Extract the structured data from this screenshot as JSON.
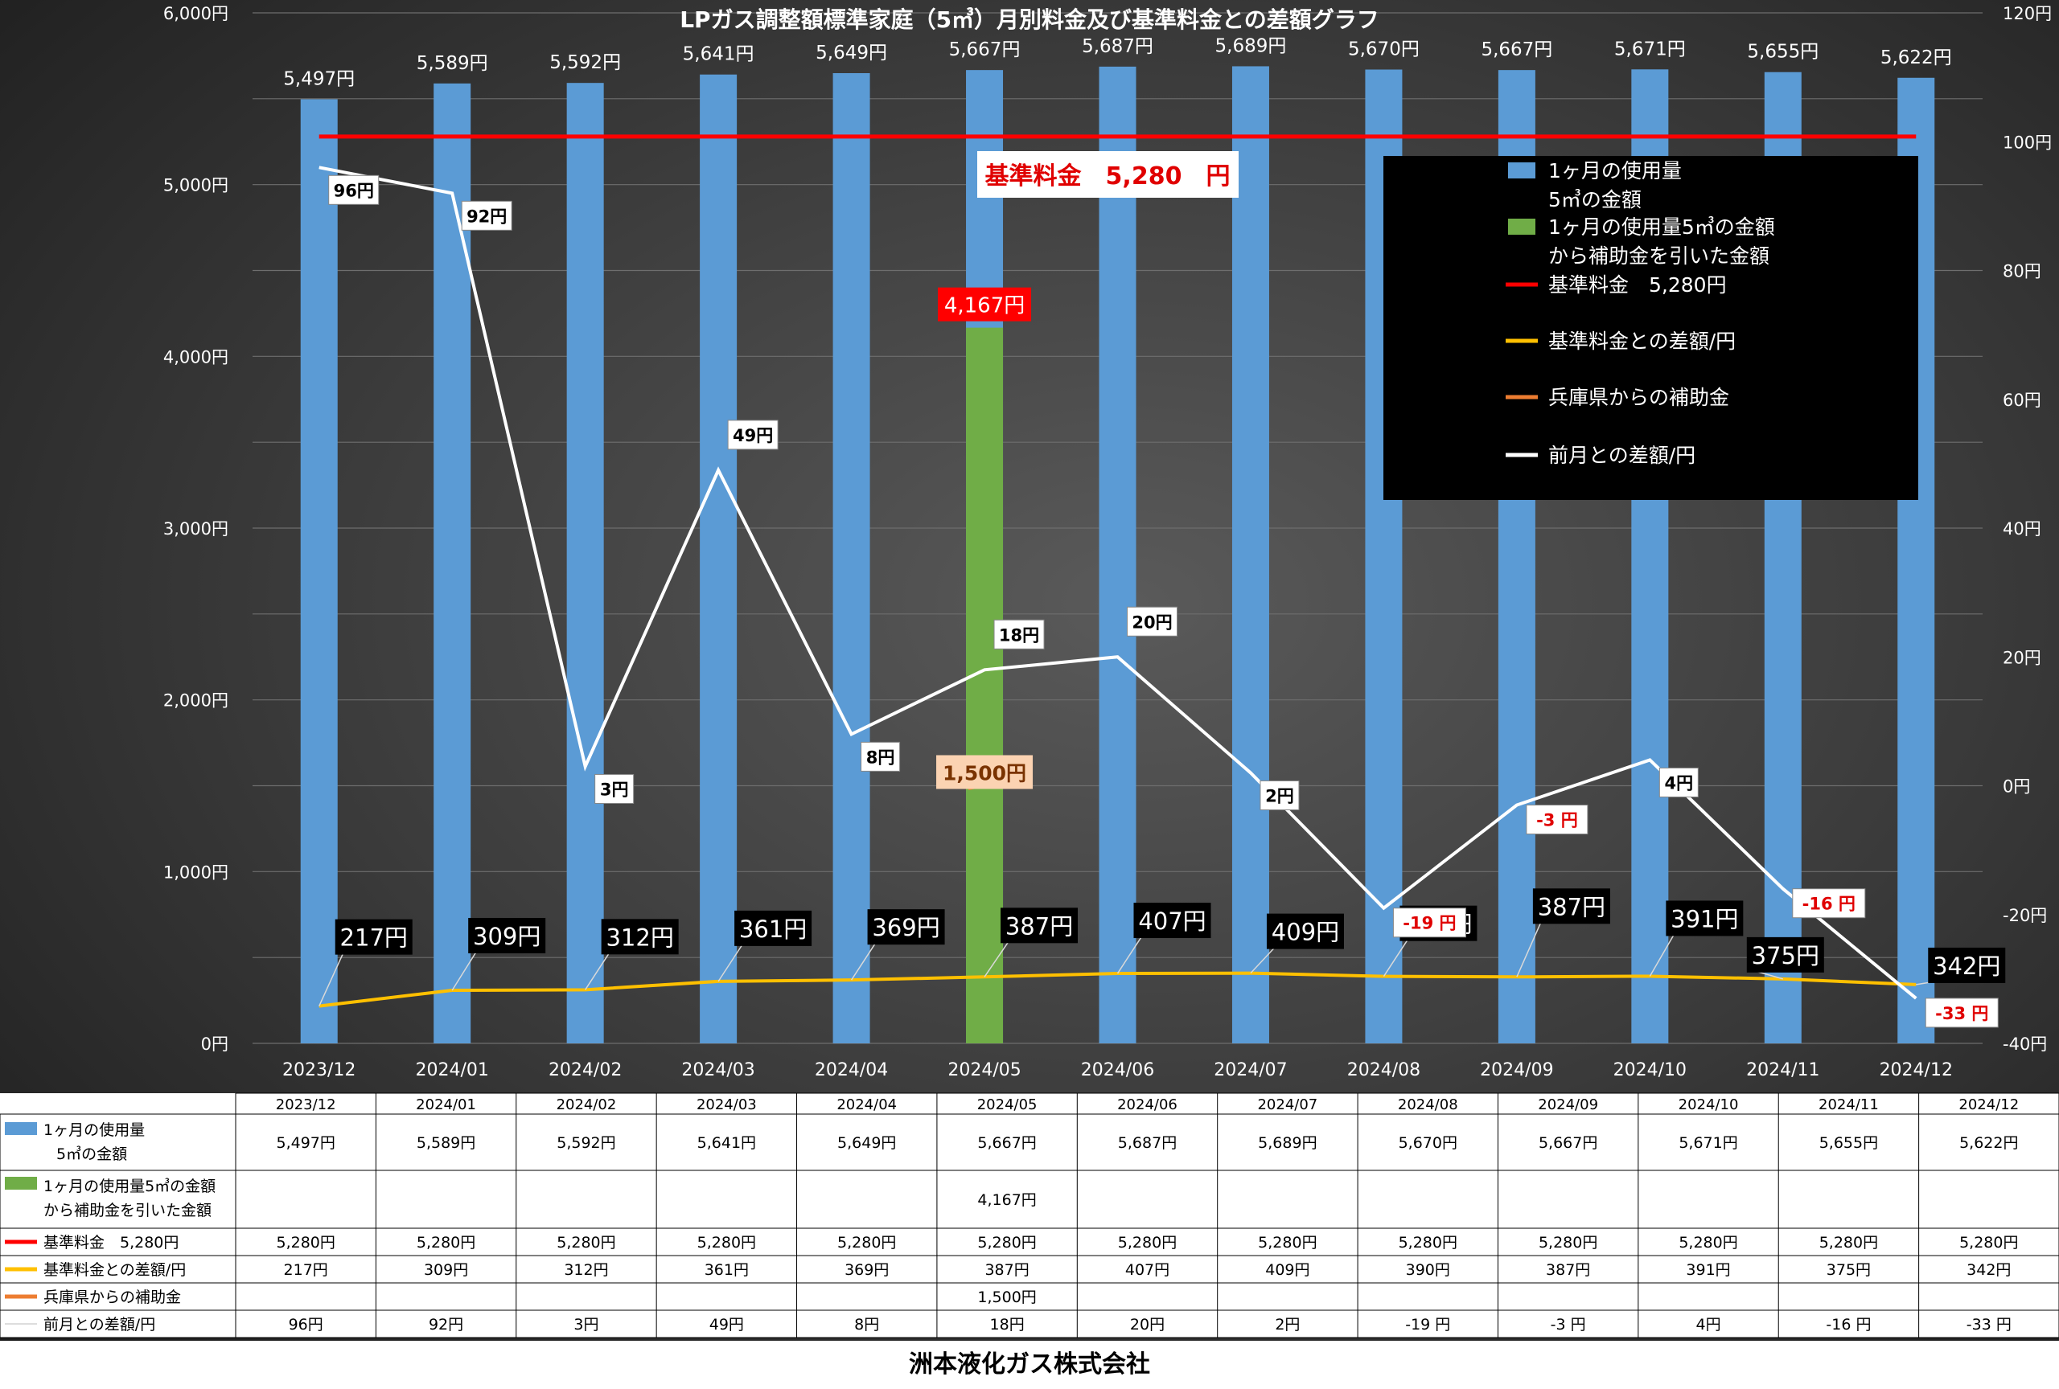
{
  "chart_data": {
    "type": "bar",
    "title": "LPガス調整額標準家庭（5㎥）月別料金及び基準料金との差額グラフ",
    "categories": [
      "2023/12",
      "2024/01",
      "2024/02",
      "2024/03",
      "2024/04",
      "2024/05",
      "2024/06",
      "2024/07",
      "2024/08",
      "2024/09",
      "2024/10",
      "2024/11",
      "2024/12"
    ],
    "y_left": {
      "range": [
        0,
        6000
      ],
      "ticks": [
        "0円",
        "1,000円",
        "2,000円",
        "3,000円",
        "4,000円",
        "5,000円",
        "6,000円"
      ]
    },
    "y_right": {
      "range": [
        -40,
        120
      ],
      "ticks": [
        "-40円",
        "-20円",
        "0円",
        "20円",
        "40円",
        "60円",
        "80円",
        "100円",
        "120円"
      ]
    },
    "grid": true,
    "legend_position": "top-right",
    "series": [
      {
        "name": "1ヶ月の使用量\n5㎥の金額",
        "type": "bar",
        "color": "#5b9bd5",
        "values": [
          5497,
          5589,
          5592,
          5641,
          5649,
          5667,
          5687,
          5689,
          5670,
          5667,
          5671,
          5655,
          5622
        ],
        "labels": [
          "5,497円",
          "5,589円",
          "5,592円",
          "5,641円",
          "5,649円",
          "5,667円",
          "5,687円",
          "5,689円",
          "5,670円",
          "5,667円",
          "5,671円",
          "5,655円",
          "5,622円"
        ]
      },
      {
        "name": "1ヶ月の使用量5㎥の金額\nから補助金を引いた金額",
        "type": "bar",
        "color": "#70ad47",
        "values": [
          null,
          null,
          null,
          null,
          null,
          4167,
          null,
          null,
          null,
          null,
          null,
          null,
          null
        ],
        "labels": [
          "",
          "",
          "",
          "",
          "",
          "4,167円",
          "",
          "",
          "",
          "",
          "",
          "",
          ""
        ]
      },
      {
        "name": "基準料金　5,280円",
        "type": "line",
        "color": "#ff0000",
        "values": [
          5280,
          5280,
          5280,
          5280,
          5280,
          5280,
          5280,
          5280,
          5280,
          5280,
          5280,
          5280,
          5280
        ],
        "labels": [
          "5,280円",
          "5,280円",
          "5,280円",
          "5,280円",
          "5,280円",
          "5,280円",
          "5,280円",
          "5,280円",
          "5,280円",
          "5,280円",
          "5,280円",
          "5,280円",
          "5,280円"
        ]
      },
      {
        "name": "基準料金との差額/円",
        "type": "line",
        "color": "#ffc000",
        "values": [
          217,
          309,
          312,
          361,
          369,
          387,
          407,
          409,
          390,
          387,
          391,
          375,
          342
        ],
        "labels": [
          "217円",
          "309円",
          "312円",
          "361円",
          "369円",
          "387円",
          "407円",
          "409円",
          "390円",
          "387円",
          "391円",
          "375円",
          "342円"
        ]
      },
      {
        "name": "兵庫県からの補助金",
        "type": "line",
        "color": "#ed7d31",
        "values": [
          null,
          null,
          null,
          null,
          null,
          1500,
          null,
          null,
          null,
          null,
          null,
          null,
          null
        ],
        "labels": [
          "",
          "",
          "",
          "",
          "",
          "1,500円",
          "",
          "",
          "",
          "",
          "",
          "",
          ""
        ]
      },
      {
        "name": "前月との差額/円",
        "type": "line",
        "color": "#ffffff",
        "axis": "right",
        "values": [
          96,
          92,
          3,
          49,
          8,
          18,
          20,
          2,
          -19,
          -3,
          4,
          -16,
          -33
        ],
        "labels": [
          "96円",
          "92円",
          "3円",
          "49円",
          "8円",
          "18円",
          "20円",
          "2円",
          "-19 円",
          "-3 円",
          "4円",
          "-16 円",
          "-33 円"
        ],
        "chart_labels": [
          "96円",
          "92円",
          "3円",
          "49円",
          "8円",
          "18円",
          "20円",
          "2円",
          "-19 円",
          "-3 円",
          "4円",
          "-16 円",
          "-33 円"
        ]
      }
    ],
    "annotations": {
      "base_fee": "基準料金　5,280　円"
    }
  },
  "footer": {
    "company": "洲本液化ガス株式会社"
  }
}
